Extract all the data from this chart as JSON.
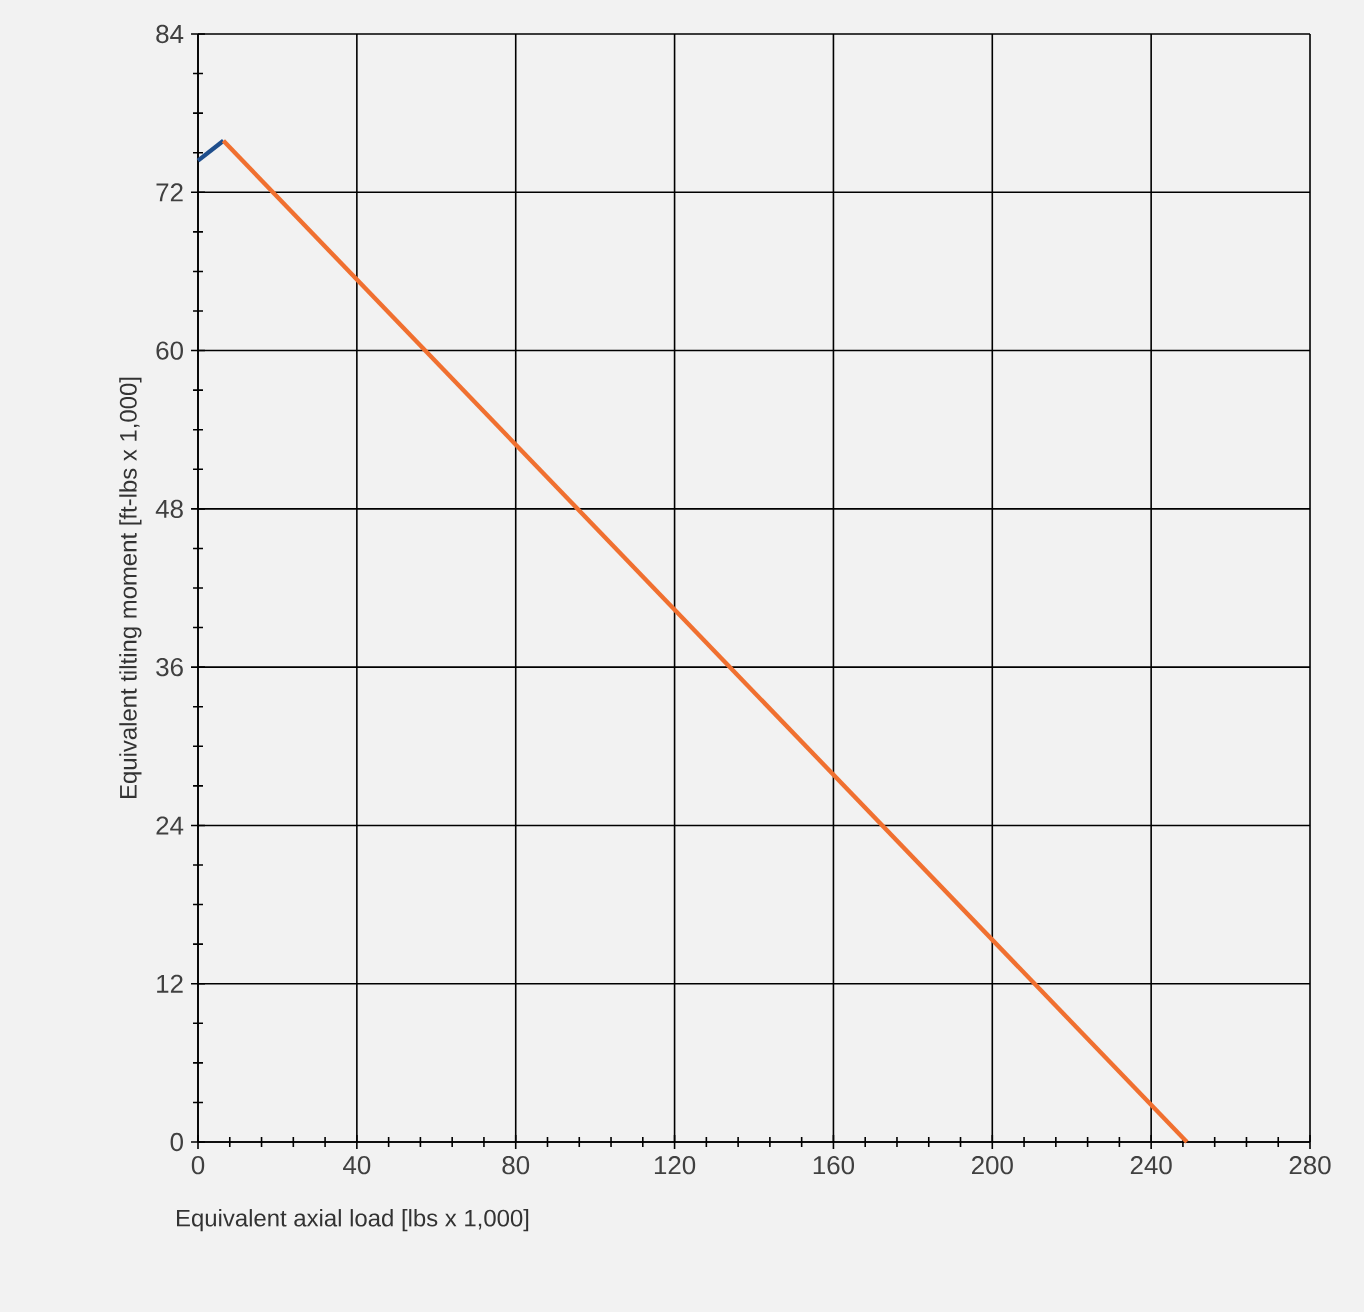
{
  "chart_data": {
    "type": "line",
    "xlabel": "Equivalent axial load [lbs x 1,000]",
    "ylabel": "Equivalent tilting moment [ft-lbs x 1,000]",
    "series": [
      {
        "color": "#1f4e8c",
        "x": [
          0,
          6.4
        ],
        "values": [
          74.4,
          75.9
        ]
      },
      {
        "color": "#f07030",
        "x": [
          6.4,
          249
        ],
        "values": [
          75.9,
          0
        ]
      }
    ],
    "xlim": [
      0,
      280
    ],
    "ylim": [
      0,
      84
    ],
    "xticks": [
      0,
      40,
      80,
      120,
      160,
      200,
      240,
      280
    ],
    "yticks": [
      0,
      12,
      24,
      36,
      48,
      60,
      72,
      84
    ],
    "grid": true,
    "marker": "none",
    "line_style": "solid"
  }
}
